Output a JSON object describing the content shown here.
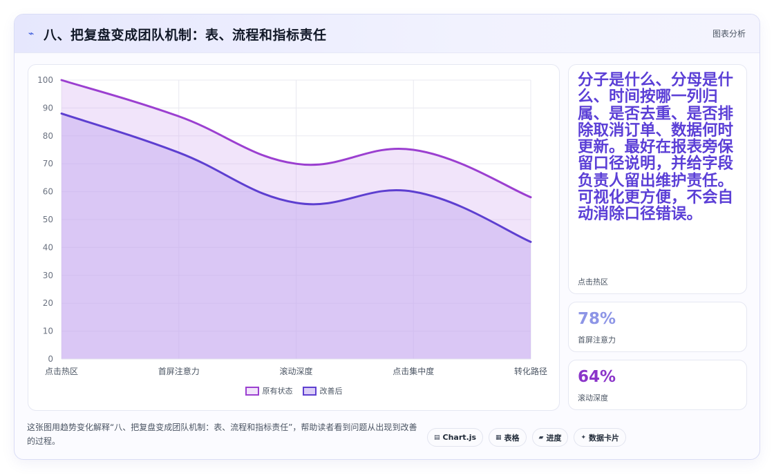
{
  "header": {
    "icon": "⌁",
    "icon_name": "pulse-icon",
    "title": "八、把复盘变成团队机制：表、流程和指标责任",
    "action": "图表分析"
  },
  "chart_data": {
    "type": "area",
    "categories": [
      "点击热区",
      "首屏注意力",
      "滚动深度",
      "点击集中度",
      "转化路径"
    ],
    "series": [
      {
        "name": "原有状态",
        "values": [
          100,
          87,
          70,
          75,
          58
        ],
        "color": "#9b3fd0",
        "fill": "rgba(215, 178, 240, 0.35)"
      },
      {
        "name": "改善后",
        "values": [
          88,
          74,
          56,
          60,
          42
        ],
        "color": "#5d3fd0",
        "fill": "rgba(190, 165, 240, 0.45)"
      }
    ],
    "ylim": [
      0,
      100
    ],
    "y_ticks": [
      0,
      10,
      20,
      30,
      40,
      50,
      60,
      70,
      80,
      90,
      100
    ],
    "grid": true,
    "legend_position": "bottom"
  },
  "side": {
    "note": {
      "text": "分子是什么、分母是什么、时间按哪一列归属、是否去重、是否排除取消订单、数据何时更新。最好在报表旁保留口径说明，并给字段负责人留出维护责任。可视化更方便，不会自动消除口径错误。",
      "caption": "点击热区"
    },
    "stats": [
      {
        "value": "78%",
        "caption": "首屏注意力",
        "color": "#8d95e6"
      },
      {
        "value": "64%",
        "caption": "滚动深度",
        "color": "#8a34c9"
      }
    ]
  },
  "footer": {
    "description": "这张图用趋势变化解释“八、把复盘变成团队机制：表、流程和指标责任”，帮助读者看到问题从出现到改善的过程。",
    "chips": [
      {
        "icon": "▤",
        "icon_name": "chart-icon",
        "label": "Chart.js"
      },
      {
        "icon": "▦",
        "icon_name": "table-icon",
        "label": "表格"
      },
      {
        "icon": "▰",
        "icon_name": "progress-icon",
        "label": "进度"
      },
      {
        "icon": "✦",
        "icon_name": "sparkle-icon",
        "label": "数据卡片"
      }
    ]
  }
}
